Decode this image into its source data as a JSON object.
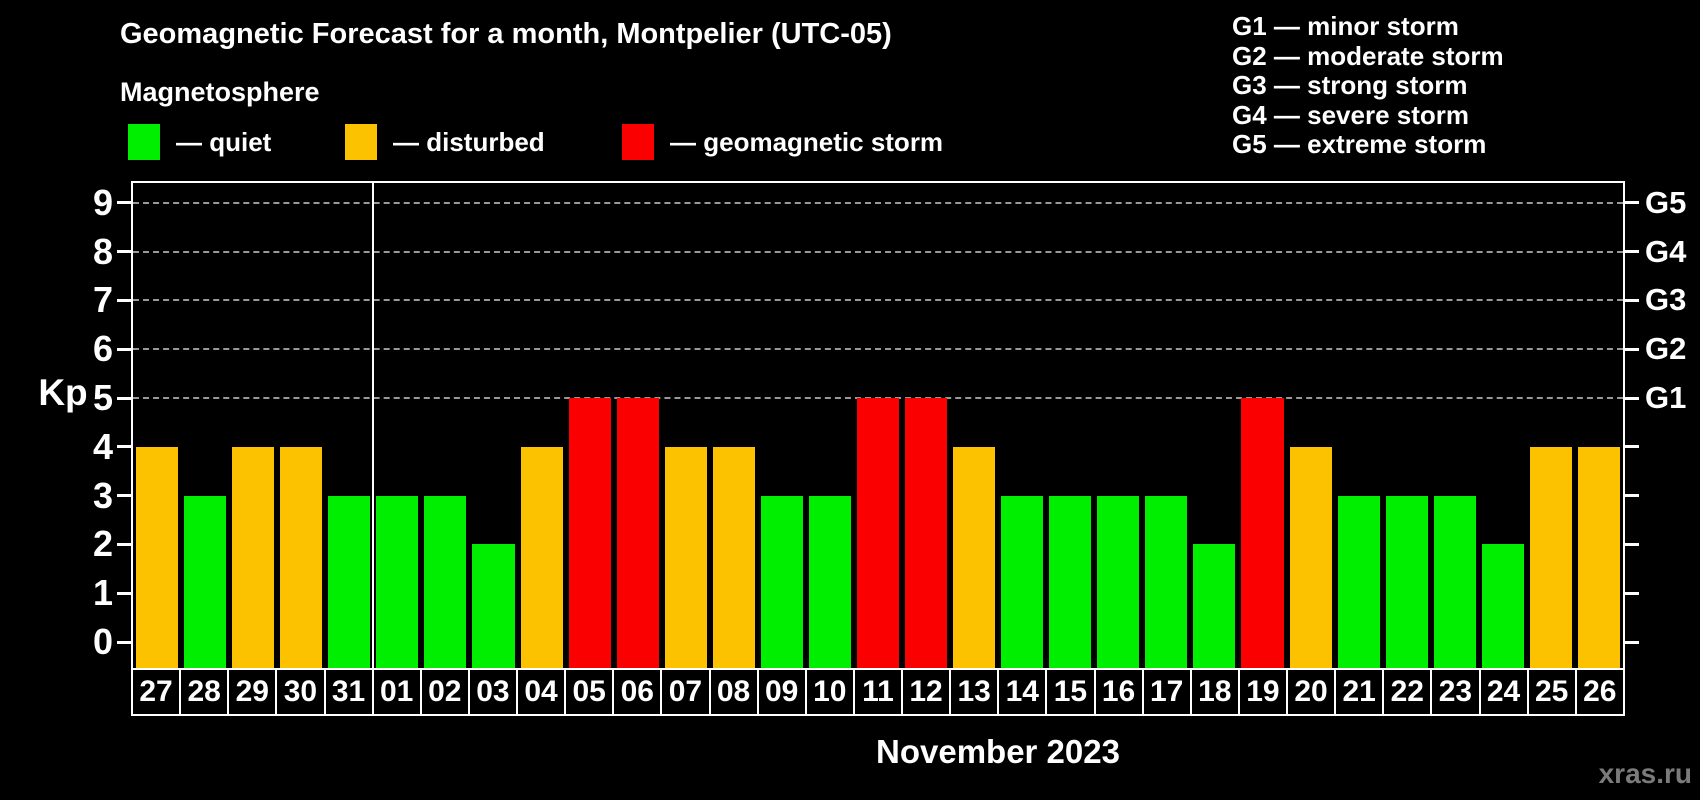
{
  "title": "Geomagnetic Forecast for a month, Montpelier (UTC-05)",
  "subtitle": "Magnetosphere",
  "legend": {
    "items": [
      {
        "key": "quiet",
        "label": "— quiet",
        "color": "#00ee00"
      },
      {
        "key": "disturbed",
        "label": "— disturbed",
        "color": "#fcc200"
      },
      {
        "key": "storm",
        "label": "— geomagnetic storm",
        "color": "#fb0000"
      }
    ]
  },
  "g_scale_legend": [
    {
      "code": "G1",
      "desc": "minor storm"
    },
    {
      "code": "G2",
      "desc": "moderate storm"
    },
    {
      "code": "G3",
      "desc": "strong storm"
    },
    {
      "code": "G4",
      "desc": "severe storm"
    },
    {
      "code": "G5",
      "desc": "extreme storm"
    }
  ],
  "axes": {
    "y_title": "Kp",
    "y_ticks": [
      "0",
      "1",
      "2",
      "3",
      "4",
      "5",
      "6",
      "7",
      "8",
      "9"
    ],
    "right_axis_labels": [
      {
        "kp": 5,
        "label": "G1"
      },
      {
        "kp": 6,
        "label": "G2"
      },
      {
        "kp": 7,
        "label": "G3"
      },
      {
        "kp": 8,
        "label": "G4"
      },
      {
        "kp": 9,
        "label": "G5"
      }
    ],
    "month_label": "November 2023"
  },
  "status_colors": {
    "quiet": "#00ee00",
    "disturbed": "#fcc200",
    "storm": "#fb0000"
  },
  "grid_color": "#999999",
  "watermark": "xras.ru",
  "chart_data": {
    "type": "bar",
    "title": "Geomagnetic Forecast for a month, Montpelier (UTC-05)",
    "xlabel": "November 2023",
    "ylabel": "Kp",
    "ylim": [
      0,
      9.4
    ],
    "gridlines_at": [
      5,
      6,
      7,
      8,
      9
    ],
    "legend_position": "top",
    "month_boundary_index": 5,
    "categories": [
      "27",
      "28",
      "29",
      "30",
      "31",
      "01",
      "02",
      "03",
      "04",
      "05",
      "06",
      "07",
      "08",
      "09",
      "10",
      "11",
      "12",
      "13",
      "14",
      "15",
      "16",
      "17",
      "18",
      "19",
      "20",
      "21",
      "22",
      "23",
      "24",
      "25",
      "26"
    ],
    "values": [
      4,
      3,
      4,
      4,
      3,
      3,
      3,
      2,
      4,
      5,
      5,
      4,
      4,
      3,
      3,
      5,
      5,
      4,
      3,
      3,
      3,
      3,
      2,
      5,
      4,
      3,
      3,
      3,
      2,
      4,
      4
    ],
    "statuses": [
      "disturbed",
      "quiet",
      "disturbed",
      "disturbed",
      "quiet",
      "quiet",
      "quiet",
      "quiet",
      "disturbed",
      "storm",
      "storm",
      "disturbed",
      "disturbed",
      "quiet",
      "quiet",
      "storm",
      "storm",
      "disturbed",
      "quiet",
      "quiet",
      "quiet",
      "quiet",
      "quiet",
      "storm",
      "disturbed",
      "quiet",
      "quiet",
      "quiet",
      "quiet",
      "disturbed",
      "disturbed"
    ]
  }
}
